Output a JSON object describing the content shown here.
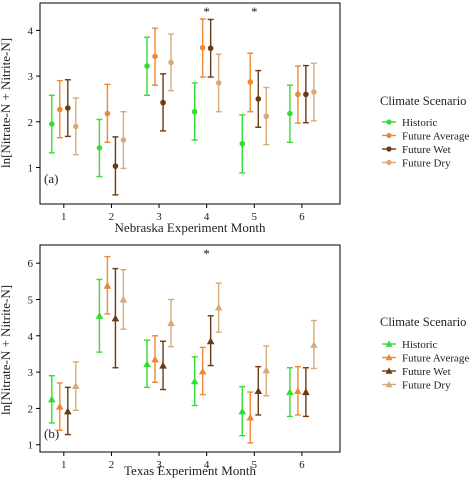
{
  "colors": {
    "Historic": "#33dd33",
    "Future Average": "#ee8833",
    "Future Wet": "#6b3a14",
    "Future Dry": "#d6ab7b"
  },
  "chart_data": [
    {
      "type": "scatter",
      "panel_label": "(a)",
      "xlabel": "Nebraska Experiment Month",
      "ylabel": "ln[Nitrate-N + Nitrite-N]",
      "categories": [
        "1",
        "2",
        "3",
        "4",
        "5",
        "6"
      ],
      "xlim": [
        0.5,
        6.8
      ],
      "ylim": [
        0.2,
        4.6
      ],
      "yticks": [
        1,
        2,
        3,
        4
      ],
      "grid": false,
      "legend_title": "Climate Scenario",
      "legend_position": "right",
      "marker": "circle",
      "significance_markers": [
        {
          "month": "4",
          "label": "*"
        },
        {
          "month": "5",
          "label": "*"
        }
      ],
      "series": [
        {
          "name": "Historic",
          "mean": [
            1.95,
            1.43,
            3.22,
            2.22,
            1.52,
            2.18
          ],
          "lower": [
            1.32,
            0.8,
            2.58,
            1.6,
            0.88,
            1.55
          ],
          "upper": [
            2.58,
            2.05,
            3.85,
            2.85,
            2.15,
            2.8
          ]
        },
        {
          "name": "Future Average",
          "mean": [
            2.27,
            2.18,
            3.43,
            3.62,
            2.87,
            2.6
          ],
          "lower": [
            1.65,
            1.55,
            2.8,
            2.98,
            2.22,
            1.97
          ],
          "upper": [
            2.9,
            2.82,
            4.05,
            4.25,
            3.5,
            3.22
          ]
        },
        {
          "name": "Future Wet",
          "mean": [
            2.3,
            1.03,
            2.42,
            3.61,
            2.5,
            2.6
          ],
          "lower": [
            1.68,
            0.4,
            1.8,
            2.98,
            1.88,
            1.98
          ],
          "upper": [
            2.92,
            1.67,
            3.05,
            4.24,
            3.12,
            3.23
          ]
        },
        {
          "name": "Future Dry",
          "mean": [
            1.9,
            1.6,
            3.3,
            2.85,
            2.12,
            2.65
          ],
          "lower": [
            1.28,
            0.98,
            2.68,
            2.22,
            1.5,
            2.02
          ],
          "upper": [
            2.52,
            2.22,
            3.92,
            3.48,
            2.75,
            3.28
          ]
        }
      ]
    },
    {
      "type": "scatter",
      "panel_label": "(b)",
      "xlabel": "Texas Experiment Month",
      "ylabel": "ln[Nitrate-N + Nitrite-N]",
      "categories": [
        "1",
        "2",
        "3",
        "4",
        "5",
        "6"
      ],
      "xlim": [
        0.5,
        6.8
      ],
      "ylim": [
        0.8,
        6.5
      ],
      "yticks": [
        1,
        2,
        3,
        4,
        5,
        6
      ],
      "grid": false,
      "legend_title": "Climate Scenario",
      "legend_position": "right",
      "marker": "triangle",
      "significance_markers": [
        {
          "month": "4",
          "label": "*"
        }
      ],
      "series": [
        {
          "name": "Historic",
          "mean": [
            2.25,
            4.55,
            3.22,
            2.75,
            1.92,
            2.45
          ],
          "lower": [
            1.6,
            3.55,
            2.58,
            2.08,
            1.25,
            1.78
          ],
          "upper": [
            2.9,
            5.55,
            3.88,
            3.42,
            2.6,
            3.12
          ]
        },
        {
          "name": "Future Average",
          "mean": [
            2.05,
            5.38,
            3.35,
            3.02,
            1.75,
            2.48
          ],
          "lower": [
            1.4,
            4.6,
            2.72,
            2.38,
            1.05,
            1.82
          ],
          "upper": [
            2.7,
            6.18,
            4.0,
            3.68,
            2.45,
            3.15
          ]
        },
        {
          "name": "Future Wet",
          "mean": [
            1.92,
            4.48,
            3.18,
            3.85,
            2.48,
            2.45
          ],
          "lower": [
            1.28,
            3.12,
            2.52,
            3.18,
            1.82,
            1.78
          ],
          "upper": [
            2.58,
            5.85,
            3.85,
            4.55,
            3.15,
            3.12
          ]
        },
        {
          "name": "Future Dry",
          "mean": [
            2.62,
            5.0,
            4.35,
            4.78,
            3.05,
            3.75
          ],
          "lower": [
            1.95,
            4.18,
            3.7,
            4.1,
            2.35,
            3.1
          ],
          "upper": [
            3.28,
            5.82,
            5.0,
            5.45,
            3.72,
            4.42
          ]
        }
      ]
    }
  ]
}
